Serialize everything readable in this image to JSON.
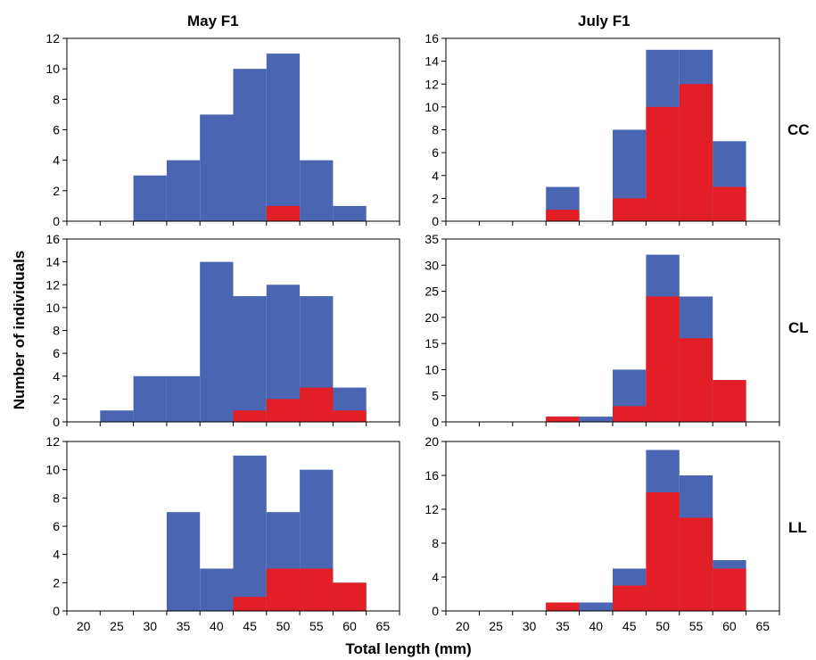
{
  "figure": {
    "columns": [
      "May F1",
      "July F1"
    ],
    "rows": [
      "CC",
      "CL",
      "LL"
    ],
    "ylabel": "Number of individuals",
    "xlabel": "Total length (mm)"
  },
  "colors": {
    "blue": "#4a66b2",
    "red": "#e21f26",
    "axis": "#000000"
  },
  "chart_data": [
    {
      "type": "bar",
      "title": "May F1",
      "row_label": "CC",
      "x_ticks": [
        20,
        25,
        30,
        35,
        40,
        45,
        50,
        55,
        60,
        65
      ],
      "show_x_tick_labels": false,
      "ylim": [
        0,
        12
      ],
      "y_ticks": [
        0,
        2,
        4,
        6,
        8,
        10,
        12
      ],
      "categories": [
        20,
        25,
        30,
        35,
        40,
        45,
        50,
        55,
        60,
        65
      ],
      "series": [
        {
          "color": "blue",
          "values": [
            0,
            0,
            3,
            4,
            7,
            10,
            11,
            4,
            1,
            0
          ]
        },
        {
          "color": "red",
          "values": [
            0,
            0,
            0,
            0,
            0,
            0,
            1,
            0,
            0,
            0
          ]
        }
      ]
    },
    {
      "type": "bar",
      "title": "July F1",
      "row_label": "CC",
      "x_ticks": [
        20,
        25,
        30,
        35,
        40,
        45,
        50,
        55,
        60,
        65
      ],
      "show_x_tick_labels": false,
      "ylim": [
        0,
        16
      ],
      "y_ticks": [
        0,
        2,
        4,
        6,
        8,
        10,
        12,
        14,
        16
      ],
      "categories": [
        20,
        25,
        30,
        35,
        40,
        45,
        50,
        55,
        60,
        65
      ],
      "series": [
        {
          "color": "blue",
          "values": [
            0,
            0,
            0,
            3,
            0,
            8,
            15,
            15,
            7,
            0
          ]
        },
        {
          "color": "red",
          "values": [
            0,
            0,
            0,
            1,
            0,
            2,
            10,
            12,
            3,
            0
          ]
        }
      ]
    },
    {
      "type": "bar",
      "title": "May F1",
      "row_label": "CL",
      "x_ticks": [
        20,
        25,
        30,
        35,
        40,
        45,
        50,
        55,
        60,
        65
      ],
      "show_x_tick_labels": false,
      "ylim": [
        0,
        16
      ],
      "y_ticks": [
        0,
        2,
        4,
        6,
        8,
        10,
        12,
        14,
        16
      ],
      "categories": [
        20,
        25,
        30,
        35,
        40,
        45,
        50,
        55,
        60,
        65
      ],
      "series": [
        {
          "color": "blue",
          "values": [
            0,
            1,
            4,
            4,
            14,
            11,
            12,
            11,
            3,
            0
          ]
        },
        {
          "color": "red",
          "values": [
            0,
            0,
            0,
            0,
            0,
            1,
            2,
            3,
            1,
            0
          ]
        }
      ]
    },
    {
      "type": "bar",
      "title": "July F1",
      "row_label": "CL",
      "x_ticks": [
        20,
        25,
        30,
        35,
        40,
        45,
        50,
        55,
        60,
        65
      ],
      "show_x_tick_labels": false,
      "ylim": [
        0,
        35
      ],
      "y_ticks": [
        0,
        5,
        10,
        15,
        20,
        25,
        30,
        35
      ],
      "categories": [
        20,
        25,
        30,
        35,
        40,
        45,
        50,
        55,
        60,
        65
      ],
      "series": [
        {
          "color": "blue",
          "values": [
            0,
            0,
            0,
            1,
            1,
            10,
            32,
            24,
            8,
            0
          ]
        },
        {
          "color": "red",
          "values": [
            0,
            0,
            0,
            1,
            0,
            3,
            24,
            16,
            8,
            0
          ]
        }
      ]
    },
    {
      "type": "bar",
      "title": "May F1",
      "row_label": "LL",
      "x_ticks": [
        20,
        25,
        30,
        35,
        40,
        45,
        50,
        55,
        60,
        65
      ],
      "show_x_tick_labels": true,
      "ylim": [
        0,
        12
      ],
      "y_ticks": [
        0,
        2,
        4,
        6,
        8,
        10,
        12
      ],
      "categories": [
        20,
        25,
        30,
        35,
        40,
        45,
        50,
        55,
        60,
        65
      ],
      "series": [
        {
          "color": "blue",
          "values": [
            0,
            0,
            0,
            7,
            3,
            11,
            7,
            10,
            2,
            0
          ]
        },
        {
          "color": "red",
          "values": [
            0,
            0,
            0,
            0,
            0,
            1,
            3,
            3,
            2,
            0
          ]
        }
      ]
    },
    {
      "type": "bar",
      "title": "July F1",
      "row_label": "LL",
      "x_ticks": [
        20,
        25,
        30,
        35,
        40,
        45,
        50,
        55,
        60,
        65
      ],
      "show_x_tick_labels": true,
      "ylim": [
        0,
        20
      ],
      "y_ticks": [
        0,
        4,
        8,
        12,
        16,
        20
      ],
      "categories": [
        20,
        25,
        30,
        35,
        40,
        45,
        50,
        55,
        60,
        65
      ],
      "series": [
        {
          "color": "blue",
          "values": [
            0,
            0,
            0,
            1,
            1,
            5,
            19,
            16,
            6,
            0
          ]
        },
        {
          "color": "red",
          "values": [
            0,
            0,
            0,
            1,
            0,
            3,
            14,
            11,
            5,
            0
          ]
        }
      ]
    }
  ]
}
